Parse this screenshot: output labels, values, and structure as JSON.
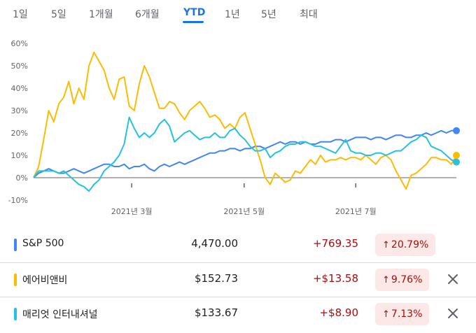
{
  "tabs": [
    {
      "label": "1일",
      "active": false
    },
    {
      "label": "5일",
      "active": false
    },
    {
      "label": "1개월",
      "active": false
    },
    {
      "label": "6개월",
      "active": false
    },
    {
      "label": "YTD",
      "active": true
    },
    {
      "label": "1년",
      "active": false
    },
    {
      "label": "5년",
      "active": false
    },
    {
      "label": "최대",
      "active": false
    }
  ],
  "chart_data": {
    "type": "line",
    "title": "",
    "ylim": [
      -10,
      60
    ],
    "yticks": [
      "60%",
      "50%",
      "40%",
      "30%",
      "20%",
      "10%",
      "0%",
      "-10%"
    ],
    "xticks": [
      "2021년 3월",
      "2021년 5월",
      "2021년 7월"
    ],
    "series": [
      {
        "name": "S&P 500",
        "color": "#4285f4",
        "values": [
          0,
          2,
          3,
          4,
          3,
          2,
          2,
          3,
          4,
          3,
          2,
          3,
          4,
          5,
          6,
          6,
          5,
          5,
          6,
          4,
          5,
          5,
          6,
          4,
          3,
          5,
          6,
          5,
          6,
          7,
          6,
          7,
          8,
          9,
          10,
          11,
          11,
          12,
          12,
          13,
          13,
          12,
          13,
          13,
          14,
          14,
          13,
          14,
          15,
          16,
          15,
          16,
          16,
          15,
          16,
          15,
          15,
          16,
          16,
          16,
          17,
          17,
          16,
          17,
          18,
          18,
          18,
          17,
          18,
          18,
          17,
          18,
          19,
          19,
          18,
          18,
          19,
          19,
          20,
          19,
          20,
          21,
          20,
          21,
          21
        ]
      },
      {
        "name": "에어비앤비",
        "color": "#fbbc04",
        "values": [
          0,
          5,
          17,
          30,
          25,
          33,
          36,
          43,
          33,
          40,
          35,
          50,
          56,
          52,
          48,
          40,
          35,
          44,
          45,
          32,
          30,
          42,
          50,
          45,
          38,
          31,
          31,
          34,
          33,
          29,
          26,
          30,
          32,
          34,
          31,
          27,
          28,
          26,
          22,
          24,
          22,
          27,
          29,
          22,
          15,
          8,
          0,
          -3,
          2,
          0,
          -2,
          -1,
          3,
          2,
          5,
          8,
          6,
          10,
          7,
          8,
          8,
          9,
          8,
          9,
          9,
          8,
          10,
          8,
          6,
          9,
          10,
          8,
          3,
          -1,
          -5,
          1,
          2,
          4,
          6,
          9,
          9,
          8,
          8,
          6,
          10
        ]
      },
      {
        "name": "매리엇 인터내셔널",
        "color": "#24c1e0",
        "values": [
          0,
          3,
          3,
          3,
          3,
          2,
          3,
          1,
          -1,
          -3,
          -4,
          -6,
          -3,
          -1,
          3,
          5,
          7,
          10,
          15,
          27,
          22,
          18,
          20,
          18,
          20,
          24,
          26,
          23,
          16,
          18,
          20,
          21,
          19,
          17,
          18,
          18,
          20,
          18,
          18,
          21,
          22,
          19,
          17,
          14,
          12,
          12,
          13,
          9,
          11,
          12,
          14,
          15,
          15,
          16,
          16,
          15,
          14,
          14,
          13,
          12,
          11,
          14,
          17,
          12,
          11,
          11,
          10,
          10,
          11,
          11,
          10,
          11,
          12,
          12,
          14,
          16,
          17,
          19,
          18,
          14,
          13,
          12,
          10,
          8,
          7
        ]
      }
    ]
  },
  "rows": [
    {
      "name": "S&P 500",
      "color": "#4285f4",
      "price": "4,470.00",
      "change": "+769.35",
      "percent": "20.79%",
      "removable": false
    },
    {
      "name": "에어비앤비",
      "color": "#fbbc04",
      "price": "$152.73",
      "change": "+$13.58",
      "percent": "9.76%",
      "removable": true
    },
    {
      "name": "매리엇 인터내셔널",
      "color": "#24c1e0",
      "price": "$133.67",
      "change": "+$8.90",
      "percent": "7.13%",
      "removable": true
    }
  ],
  "icons": {
    "arrow": "arrow-up-icon",
    "close": "close-icon"
  }
}
